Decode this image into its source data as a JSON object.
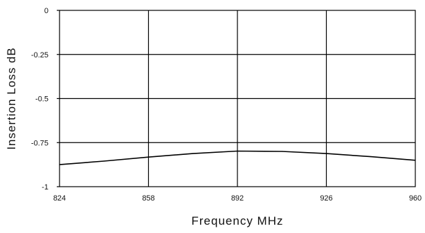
{
  "chart_data": {
    "type": "line",
    "title": "",
    "xlabel": "Frequency MHz",
    "ylabel": "Insertion Loss dB",
    "xlim": [
      824,
      960
    ],
    "ylim": [
      -1,
      0
    ],
    "grid": true,
    "x_ticks": [
      824,
      858,
      892,
      926,
      960
    ],
    "x_tick_labels": [
      "824",
      "858",
      "892",
      "926",
      "960"
    ],
    "y_ticks": [
      0,
      -0.25,
      -0.5,
      -0.75,
      -1
    ],
    "y_tick_labels": [
      "0",
      "-0.25",
      "-0.5",
      "-0.75",
      "-1"
    ],
    "series": [
      {
        "color": "#000000",
        "x": [
          824,
          841,
          858,
          875,
          892,
          909,
          926,
          943,
          960
        ],
        "y": [
          -0.875,
          -0.855,
          -0.832,
          -0.812,
          -0.798,
          -0.8,
          -0.812,
          -0.83,
          -0.85
        ]
      }
    ]
  }
}
